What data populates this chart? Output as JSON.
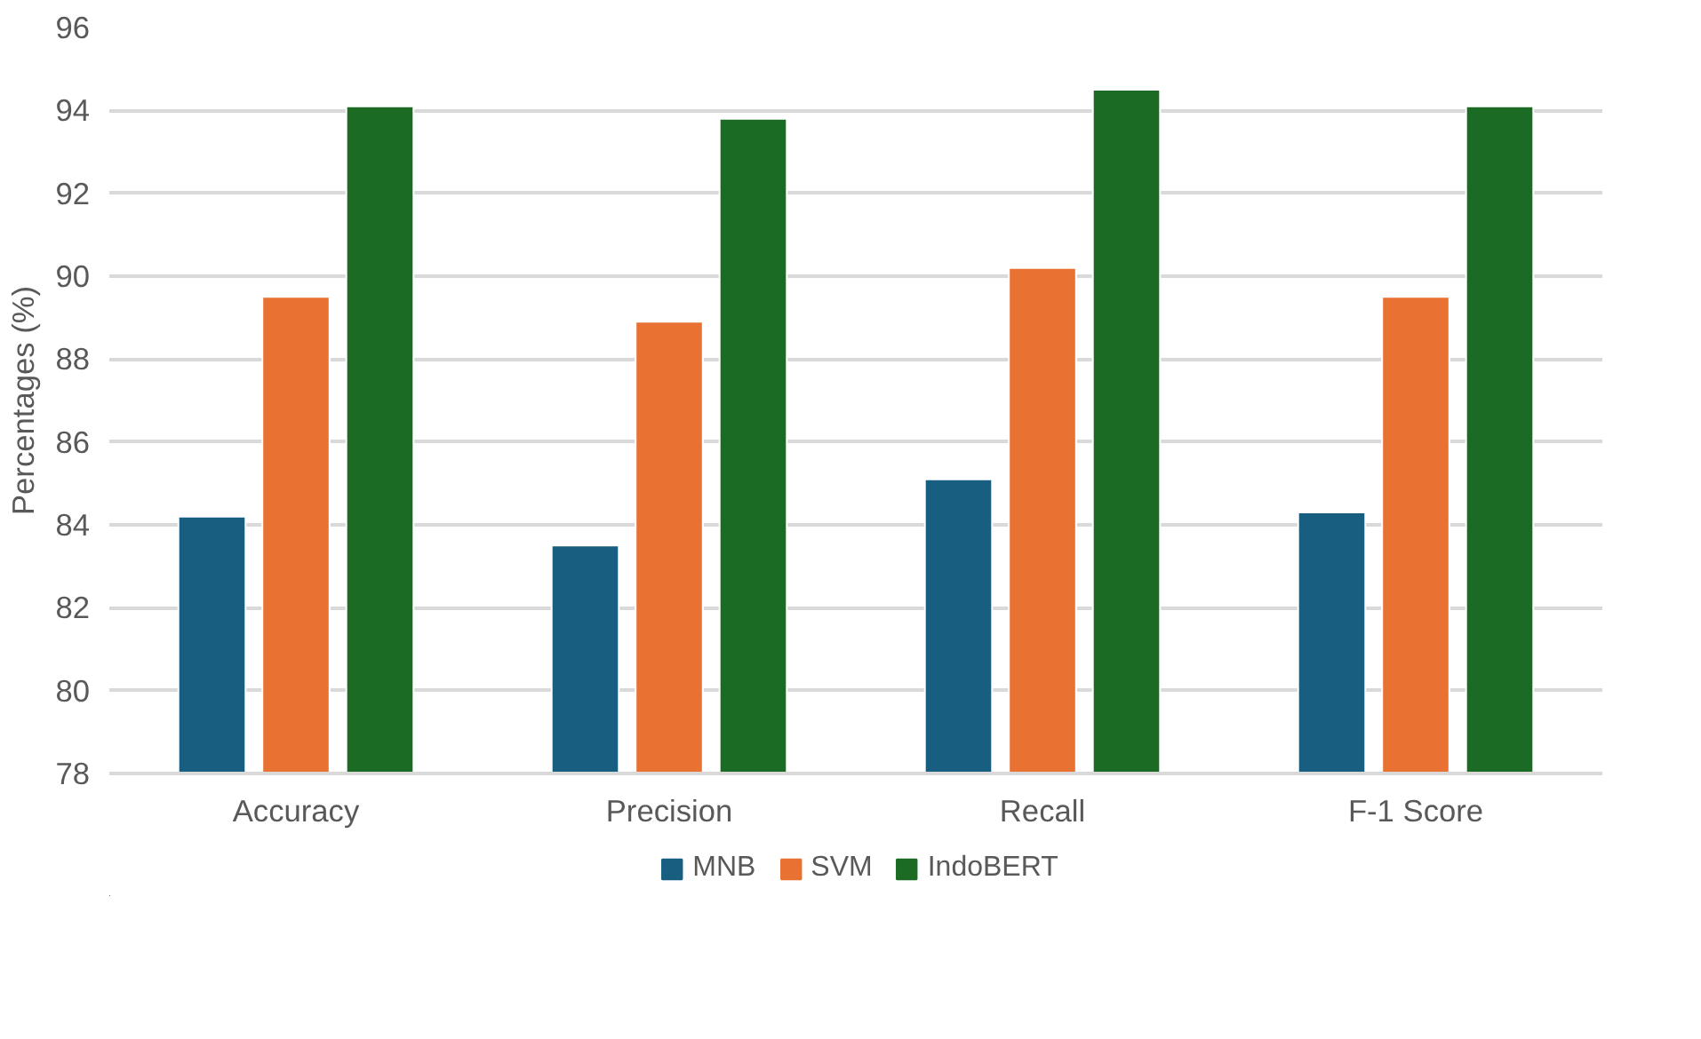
{
  "chart_data": {
    "type": "bar",
    "ylabel": "Percentages (%)",
    "categories": [
      "Accuracy",
      "Precision",
      "Recall",
      "F-1 Score"
    ],
    "series": [
      {
        "name": "MNB",
        "color": "#175e80",
        "values": [
          84.2,
          83.5,
          85.1,
          84.3
        ]
      },
      {
        "name": "SVM",
        "color": "#e97132",
        "values": [
          89.5,
          88.9,
          90.2,
          89.5
        ]
      },
      {
        "name": "IndoBERT",
        "color": "#1b6b24",
        "values": [
          94.1,
          93.8,
          94.5,
          94.1
        ]
      }
    ],
    "ylim": [
      78,
      96
    ],
    "yticks": [
      78,
      80,
      82,
      84,
      86,
      88,
      90,
      92,
      94,
      96
    ],
    "grid": "y",
    "legend": "bottom"
  }
}
